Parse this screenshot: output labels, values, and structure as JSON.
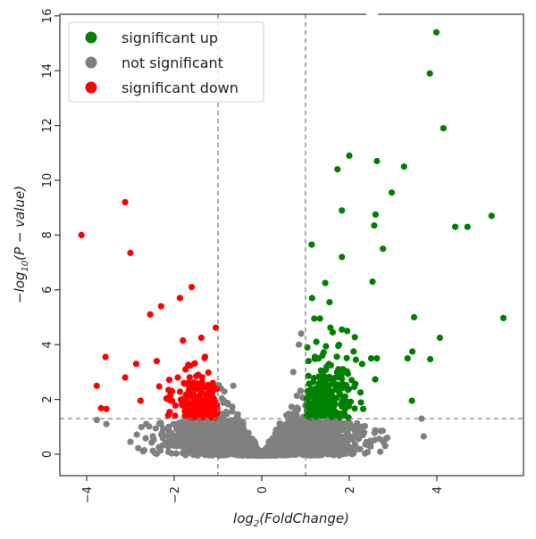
{
  "chart_data": {
    "type": "scatter",
    "title": "",
    "xlabel": "log2(FoldChange)",
    "ylabel": "-log10(P - value)",
    "xlim": [
      -4.5,
      5.9
    ],
    "ylim": [
      -0.8,
      16.2
    ],
    "xticks": [
      -4,
      -2,
      0,
      2,
      4
    ],
    "yticks": [
      0,
      2,
      4,
      6,
      8,
      10,
      12,
      14,
      16
    ],
    "grid": false,
    "legend_position": "upper left",
    "thresholds": {
      "fold_change_x": [
        -1,
        1
      ],
      "p_value_y": 1.3
    },
    "colors": {
      "up": "#008000",
      "ns": "#808080",
      "down": "#ff0000"
    },
    "series": [
      {
        "name": "significant up",
        "color": "#008000",
        "points": [
          [
            3.99,
            15.4
          ],
          [
            3.84,
            13.9
          ],
          [
            4.15,
            11.9
          ],
          [
            2.0,
            10.9
          ],
          [
            1.73,
            10.4
          ],
          [
            2.63,
            10.7
          ],
          [
            3.25,
            10.5
          ],
          [
            2.97,
            9.55
          ],
          [
            1.83,
            8.9
          ],
          [
            2.6,
            8.75
          ],
          [
            2.57,
            8.35
          ],
          [
            4.42,
            8.3
          ],
          [
            4.7,
            8.3
          ],
          [
            5.25,
            8.7
          ],
          [
            2.77,
            7.5
          ],
          [
            1.14,
            7.65
          ],
          [
            1.83,
            7.2
          ],
          [
            2.53,
            6.3
          ],
          [
            1.45,
            6.25
          ],
          [
            1.15,
            5.7
          ],
          [
            1.55,
            5.55
          ],
          [
            3.48,
            5.0
          ],
          [
            5.52,
            4.97
          ],
          [
            1.2,
            4.95
          ],
          [
            1.33,
            4.95
          ],
          [
            1.62,
            4.45
          ],
          [
            2.1,
            3.75
          ],
          [
            1.83,
            4.55
          ],
          [
            1.57,
            4.62
          ],
          [
            1.95,
            4.5
          ],
          [
            4.07,
            4.25
          ],
          [
            3.33,
            3.5
          ],
          [
            3.44,
            3.75
          ],
          [
            3.85,
            3.47
          ],
          [
            2.5,
            3.5
          ],
          [
            2.63,
            3.5
          ],
          [
            3.43,
            1.95
          ],
          [
            2.15,
            3.45
          ],
          [
            1.3,
            3.5
          ],
          [
            1.75,
            3.1
          ],
          [
            1.04,
            3.9
          ],
          [
            1.07,
            3.4
          ]
        ]
      },
      {
        "name": "not significant",
        "color": "#808080",
        "points": [
          [
            3.65,
            1.3
          ],
          [
            3.7,
            0.65
          ],
          [
            -3.55,
            1.1
          ],
          [
            -3.0,
            0.45
          ],
          [
            -1.77,
            0.6
          ],
          [
            -3.77,
            1.25
          ],
          [
            0.9,
            4.4
          ],
          [
            0.85,
            4.0
          ],
          [
            0.72,
            3.0
          ],
          [
            -0.65,
            2.5
          ],
          [
            2.87,
            0.6
          ],
          [
            2.82,
            0.3
          ]
        ]
      },
      {
        "name": "significant down",
        "color": "#ff0000",
        "points": [
          [
            -3.12,
            9.2
          ],
          [
            -4.12,
            8.0
          ],
          [
            -3.0,
            7.35
          ],
          [
            -1.6,
            6.1
          ],
          [
            -1.87,
            5.7
          ],
          [
            -2.3,
            5.4
          ],
          [
            -2.55,
            5.1
          ],
          [
            -1.05,
            4.62
          ],
          [
            -1.38,
            4.25
          ],
          [
            -1.8,
            4.15
          ],
          [
            -3.57,
            3.55
          ],
          [
            -2.4,
            3.4
          ],
          [
            -2.87,
            3.3
          ],
          [
            -3.12,
            2.8
          ],
          [
            -3.77,
            2.5
          ],
          [
            -2.77,
            1.95
          ],
          [
            -3.67,
            1.68
          ],
          [
            -3.55,
            1.65
          ],
          [
            -2.05,
            1.95
          ],
          [
            -2.05,
            2.3
          ]
        ]
      }
    ],
    "dense_clusters": {
      "up_count": 260,
      "down_count": 200,
      "ns_count": 2600
    }
  },
  "legend": {
    "items": [
      {
        "label": "significant up",
        "color": "#008000"
      },
      {
        "label": "not significant",
        "color": "#808080"
      },
      {
        "label": "significant down",
        "color": "#ff0000"
      }
    ]
  },
  "axes": {
    "xlabel_main": "log",
    "xlabel_sub": "2",
    "xlabel_rest": "(FoldChange)",
    "ylabel_prefix": "−log",
    "ylabel_sub": "10",
    "ylabel_rest": "(P − value)",
    "xtick_labels": [
      "−4",
      "−2",
      "0",
      "2",
      "4"
    ],
    "ytick_labels": [
      "0",
      "2",
      "4",
      "6",
      "8",
      "10",
      "12",
      "14",
      "16"
    ]
  }
}
